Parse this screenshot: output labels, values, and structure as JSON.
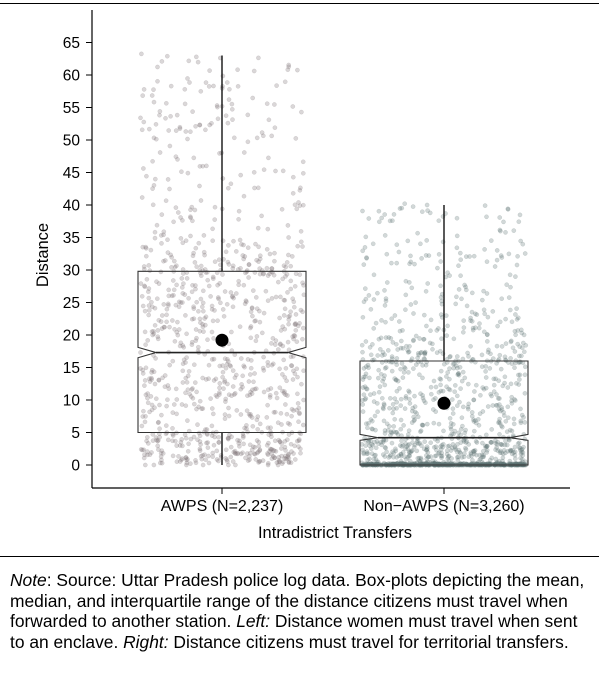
{
  "chart_data": {
    "type": "boxplot",
    "xlabel": "Intradistrict Transfers",
    "ylabel": "Distance",
    "ylim": [
      -3,
      67
    ],
    "yticks": [
      0,
      5,
      10,
      15,
      20,
      25,
      30,
      35,
      40,
      45,
      50,
      55,
      60,
      65
    ],
    "grid": false,
    "categories": [
      "AWPS (N=2,237)",
      "Non−AWPS (N=3,260)"
    ],
    "series": [
      {
        "category": "AWPS (N=2,237)",
        "n": 2237,
        "min": 0,
        "q1": 5,
        "median": 17.3,
        "q3": 29.8,
        "max": 63,
        "notch_low": 16.5,
        "notch_high": 18.1,
        "mean": 19.2,
        "point_color": "#7a6e74"
      },
      {
        "category": "Non−AWPS (N=3,260)",
        "n": 3260,
        "min": 0,
        "q1": 0,
        "median": 4.2,
        "q3": 16,
        "max": 40,
        "notch_low": 3.8,
        "notch_high": 4.7,
        "mean": 9.5,
        "point_color": "#5e7472"
      }
    ]
  },
  "note": {
    "label": "Note",
    "text1": ": Source: Uttar Pradesh police log data. Box-plots depicting the mean, median, and interquartile range of the distance citizens must travel when forwarded to another station. ",
    "left_label": "Left:",
    "text2": " Distance women must travel when sent to an enclave. ",
    "right_label": "Right:",
    "text3": " Distance citizens must travel for territorial transfers."
  }
}
